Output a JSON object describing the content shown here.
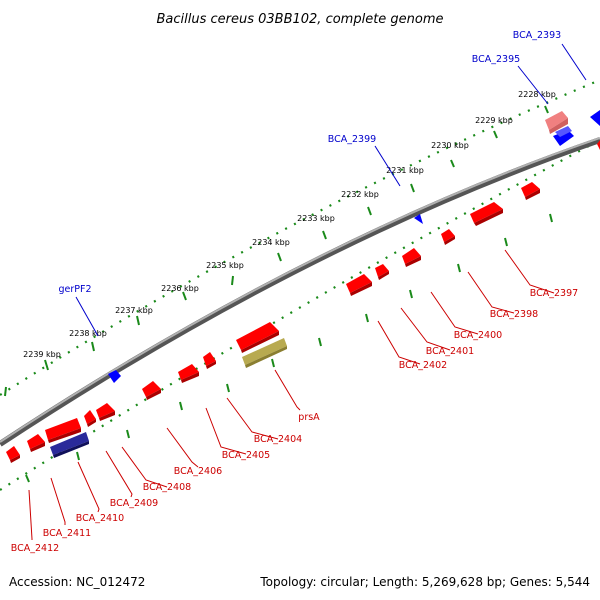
{
  "title": "Bacillus cereus 03BB102, complete genome",
  "footer": {
    "accession": "Accession: NC_012472",
    "topology": "Topology: circular; Length: 5,269,628 bp; Genes: 5,544"
  },
  "colors": {
    "reverse_gene": "#ff0000",
    "forward_gene": "#0000ff",
    "highlight_reverse": "#f08080",
    "feature_blue": "#2a2a9a",
    "feature_olive": "#b8aa50",
    "backbone": "#888888",
    "tick": "#1a8a1a",
    "forward_label": "#0000cc",
    "reverse_label": "#cc0000"
  },
  "kbp_labels": [
    "2228 kbp",
    "2229 kbp",
    "2230 kbp",
    "2231 kbp",
    "2232 kbp",
    "2233 kbp",
    "2234 kbp",
    "2235 kbp",
    "2236 kbp",
    "2237 kbp",
    "2238 kbp",
    "2239 kbp"
  ],
  "forward_gene_labels": [
    "BCA_2393",
    "BCA_2395",
    "BCA_2399",
    "gerPF2"
  ],
  "reverse_gene_labels": [
    "BCA_2397",
    "BCA_2398",
    "BCA_2400",
    "BCA_2401",
    "BCA_2402",
    "prsA",
    "BCA_2404",
    "BCA_2405",
    "BCA_2406",
    "BCA_2408",
    "BCA_2409",
    "BCA_2410",
    "BCA_2411",
    "BCA_2412"
  ]
}
